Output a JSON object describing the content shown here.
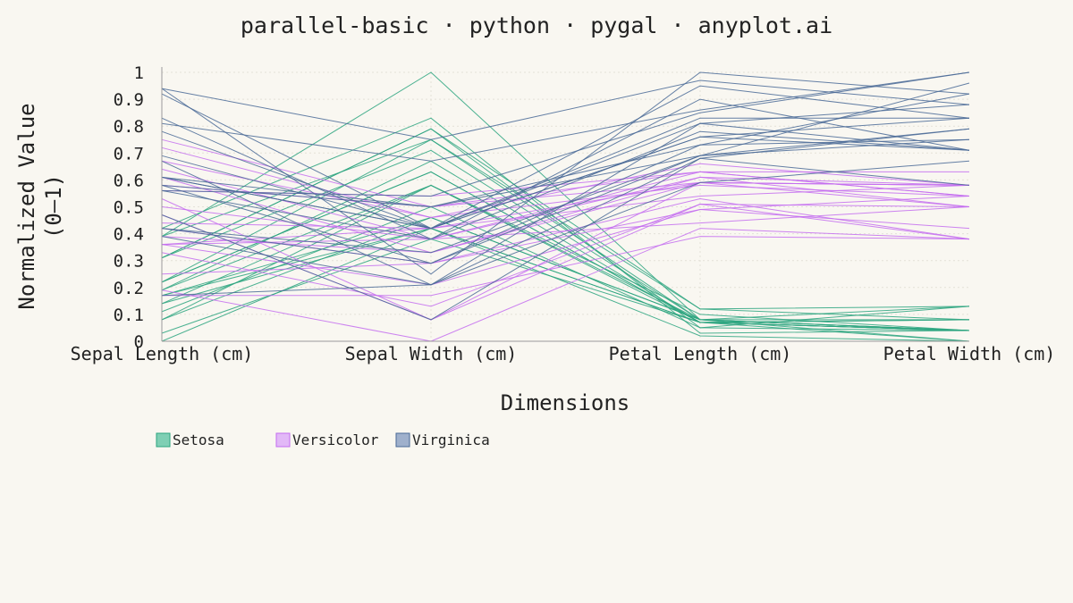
{
  "chart_data": {
    "type": "line",
    "subtype": "parallel-coordinates",
    "title": "parallel-basic · python · pygal · anyplot.ai",
    "xlabel": "Dimensions",
    "ylabel_lines": [
      "Normalized Value",
      "(0–1)"
    ],
    "x": [
      "Sepal Length (cm)",
      "Sepal Width (cm)",
      "Petal Length (cm)",
      "Petal Width (cm)"
    ],
    "yticks": [
      "0",
      "0.1",
      "0.2",
      "0.3",
      "0.4",
      "0.5",
      "0.6",
      "0.7",
      "0.8",
      "0.9",
      "1"
    ],
    "ylim": [
      0,
      1
    ],
    "grid": true,
    "legend_position": "bottom-left",
    "series": [
      {
        "name": "Setosa",
        "color": "#2ca57f",
        "fill": "#7fcfb4",
        "lines": [
          [
            0.22,
            0.63,
            0.07,
            0.04
          ],
          [
            0.17,
            0.42,
            0.07,
            0.04
          ],
          [
            0.11,
            0.5,
            0.05,
            0.04
          ],
          [
            0.08,
            0.46,
            0.08,
            0.04
          ],
          [
            0.19,
            0.67,
            0.07,
            0.04
          ],
          [
            0.31,
            0.79,
            0.12,
            0.13
          ],
          [
            0.08,
            0.58,
            0.07,
            0.08
          ],
          [
            0.19,
            0.58,
            0.08,
            0.04
          ],
          [
            0.03,
            0.38,
            0.07,
            0.04
          ],
          [
            0.17,
            0.46,
            0.08,
            0.0
          ],
          [
            0.31,
            0.71,
            0.08,
            0.04
          ],
          [
            0.14,
            0.58,
            0.1,
            0.04
          ],
          [
            0.14,
            0.42,
            0.07,
            0.0
          ],
          [
            0.0,
            0.42,
            0.02,
            0.0
          ],
          [
            0.42,
            0.83,
            0.03,
            0.04
          ],
          [
            0.39,
            1.0,
            0.08,
            0.13
          ],
          [
            0.31,
            0.79,
            0.05,
            0.13
          ],
          [
            0.22,
            0.63,
            0.07,
            0.08
          ],
          [
            0.39,
            0.75,
            0.12,
            0.08
          ],
          [
            0.22,
            0.75,
            0.08,
            0.08
          ]
        ]
      },
      {
        "name": "Versicolor",
        "color": "#c46df0",
        "fill": "#e2b8f7",
        "lines": [
          [
            0.75,
            0.5,
            0.63,
            0.54
          ],
          [
            0.58,
            0.5,
            0.59,
            0.58
          ],
          [
            0.72,
            0.46,
            0.66,
            0.58
          ],
          [
            0.33,
            0.13,
            0.51,
            0.5
          ],
          [
            0.61,
            0.33,
            0.61,
            0.58
          ],
          [
            0.39,
            0.33,
            0.59,
            0.5
          ],
          [
            0.56,
            0.54,
            0.63,
            0.63
          ],
          [
            0.17,
            0.17,
            0.39,
            0.38
          ],
          [
            0.64,
            0.38,
            0.61,
            0.5
          ],
          [
            0.25,
            0.29,
            0.49,
            0.54
          ],
          [
            0.19,
            0.0,
            0.42,
            0.38
          ],
          [
            0.44,
            0.42,
            0.54,
            0.58
          ],
          [
            0.47,
            0.08,
            0.51,
            0.38
          ],
          [
            0.5,
            0.38,
            0.63,
            0.54
          ],
          [
            0.36,
            0.38,
            0.44,
            0.5
          ],
          [
            0.67,
            0.46,
            0.58,
            0.54
          ],
          [
            0.36,
            0.42,
            0.59,
            0.58
          ],
          [
            0.42,
            0.29,
            0.53,
            0.38
          ],
          [
            0.53,
            0.08,
            0.59,
            0.58
          ],
          [
            0.36,
            0.21,
            0.49,
            0.42
          ]
        ]
      },
      {
        "name": "Virginica",
        "color": "#4a6a96",
        "fill": "#9fb0cc",
        "lines": [
          [
            0.56,
            0.54,
            0.85,
            1.0
          ],
          [
            0.42,
            0.29,
            0.69,
            0.75
          ],
          [
            0.78,
            0.42,
            0.83,
            0.83
          ],
          [
            0.56,
            0.38,
            0.78,
            0.71
          ],
          [
            0.61,
            0.42,
            0.81,
            0.88
          ],
          [
            0.92,
            0.42,
            0.95,
            0.83
          ],
          [
            0.17,
            0.21,
            0.59,
            0.67
          ],
          [
            0.83,
            0.38,
            0.9,
            0.71
          ],
          [
            0.67,
            0.21,
            0.81,
            0.71
          ],
          [
            0.81,
            0.67,
            0.86,
            1.0
          ],
          [
            0.61,
            0.5,
            0.69,
            0.79
          ],
          [
            0.58,
            0.29,
            0.73,
            0.75
          ],
          [
            0.69,
            0.42,
            0.76,
            0.83
          ],
          [
            0.39,
            0.21,
            0.68,
            0.79
          ],
          [
            0.42,
            0.33,
            0.69,
            0.96
          ],
          [
            0.58,
            0.5,
            0.73,
            0.92
          ],
          [
            0.61,
            0.42,
            0.76,
            0.71
          ],
          [
            0.94,
            0.75,
            0.97,
            0.88
          ],
          [
            0.94,
            0.25,
            1.0,
            0.92
          ],
          [
            0.47,
            0.08,
            0.68,
            0.58
          ]
        ]
      }
    ]
  }
}
